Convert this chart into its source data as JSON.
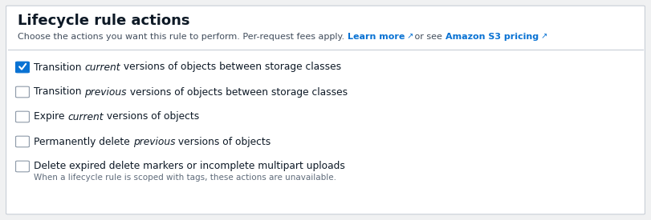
{
  "title": "Lifecycle rule actions",
  "subtitle_plain": "Choose the actions you want this rule to perform. Per-request fees apply. ",
  "subtitle_link1": "Learn more",
  "subtitle_link1_icon": " ⧉",
  "subtitle_mid": " or see ",
  "subtitle_link2": "Amazon S3 pricing",
  "subtitle_link2_icon": " ⧉",
  "bg_color": "#f0f1f2",
  "panel_color": "#ffffff",
  "border_color": "#c8ced6",
  "title_color": "#0d1926",
  "subtitle_color": "#414d5c",
  "link_color": "#0972d3",
  "checkbox_items": [
    {
      "text_before": "Transition ",
      "italic": "current",
      "text_after": " versions of objects between storage classes",
      "checked": true
    },
    {
      "text_before": "Transition ",
      "italic": "previous",
      "text_after": " versions of objects between storage classes",
      "checked": false
    },
    {
      "text_before": "Expire ",
      "italic": "current",
      "text_after": " versions of objects",
      "checked": false
    },
    {
      "text_before": "Permanently delete ",
      "italic": "previous",
      "text_after": " versions of objects",
      "checked": false
    },
    {
      "text_before": "Delete expired delete markers or incomplete multipart uploads",
      "italic": "",
      "text_after": "",
      "checked": false
    }
  ],
  "last_item_note": "When a lifecycle rule is scoped with tags, these actions are unavailable.",
  "checkbox_color_checked": "#0972d3",
  "checkbox_border_checked": "#0972d3",
  "checkbox_border_color": "#8d99a8",
  "text_color": "#0d1926",
  "note_color": "#5f6b7a",
  "figsize": [
    8.11,
    2.75
  ],
  "dpi": 100
}
